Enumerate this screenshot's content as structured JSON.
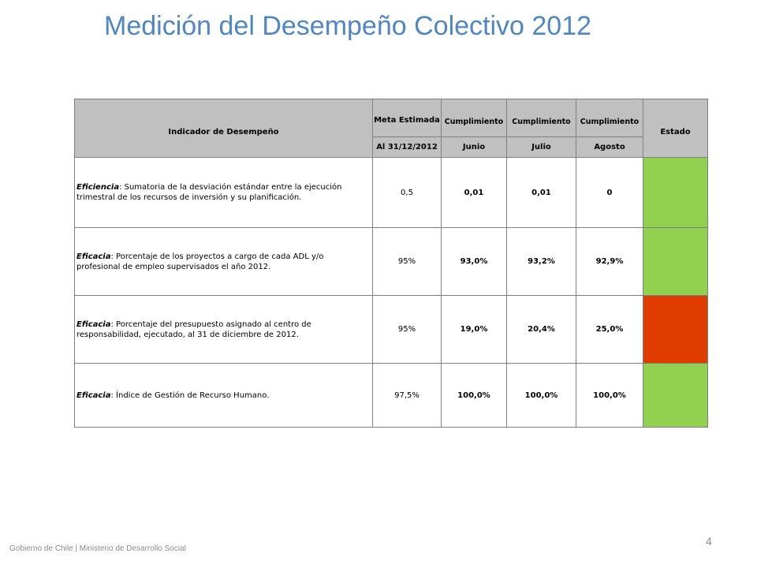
{
  "slide": {
    "title": "Medición del Desempeño Colectivo 2012",
    "footer": "Gobierno de Chile | Ministerio de Desarrollo Social",
    "page_number": "4"
  },
  "table": {
    "headers": {
      "indicator": "Indicador de Desempeño",
      "meta": "Meta Estimada",
      "meta_date": "Al 31/12/2012",
      "cumplimiento": [
        "Cumplimiento",
        "Cumplimiento",
        "Cumplimiento"
      ],
      "months": [
        "Junio",
        "Julio",
        "Agosto"
      ],
      "estado": "Estado"
    },
    "colors": {
      "header_bg": "#c0c0c0",
      "green": "#92d050",
      "red": "#e03c00"
    },
    "rows": [
      {
        "label": "Eficiencia",
        "text": ": Sumatoria de la desviación estándar entre la ejecución trimestral de los recursos de inversión y su planificación.",
        "meta": "0,5",
        "junio": "0,01",
        "julio": "0,01",
        "agosto": "0",
        "estado_color": "#92d050"
      },
      {
        "label": "Eficacia",
        "text": ": Porcentaje de los proyectos a cargo de cada ADL y/o profesional de empleo supervisados el año 2012.",
        "meta": "95%",
        "junio": "93,0%",
        "julio": "93,2%",
        "agosto": "92,9%",
        "estado_color": "#92d050"
      },
      {
        "label": "Eficacia",
        "text": ": Porcentaje del presupuesto asignado al centro de responsabilidad, ejecutado, al 31 de diciembre de 2012.",
        "meta": "95%",
        "junio": "19,0%",
        "julio": "20,4%",
        "agosto": "25,0%",
        "estado_color": "#e03c00"
      },
      {
        "label": "Eficacia",
        "text": ": Índice de Gestión de Recurso Humano.",
        "meta": "97,5%",
        "junio": "100,0%",
        "julio": "100,0%",
        "agosto": "100,0%",
        "estado_color": "#92d050"
      }
    ]
  }
}
